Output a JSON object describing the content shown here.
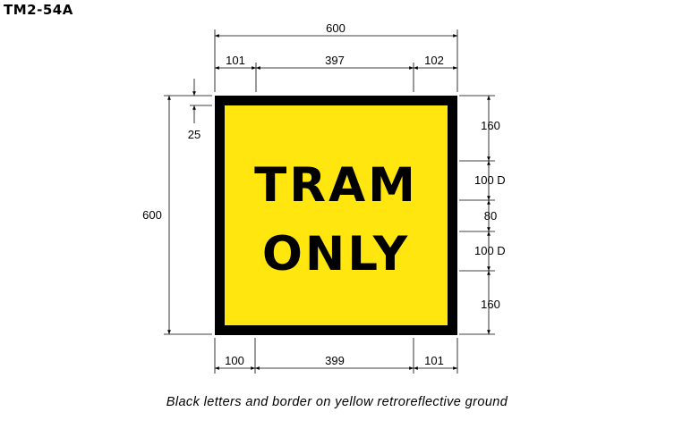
{
  "sign_code": "TM2-54A",
  "legend": {
    "line1": "TRAM",
    "line2": "ONLY"
  },
  "colors": {
    "legend_border": "#000000",
    "ground": "#ffe60f"
  },
  "caption": "Black letters and border on yellow retroreflective ground",
  "dimensions": {
    "overall_width": "600",
    "top_left_margin": "101",
    "top_text_width": "397",
    "top_right_margin": "102",
    "bottom_left_margin": "100",
    "bottom_text_width": "399",
    "bottom_right_margin": "101",
    "overall_height": "600",
    "border": "25",
    "right_top_margin": "160",
    "line1_height": "100 D",
    "line_gap": "80",
    "line2_height": "100 D",
    "right_bottom_margin": "160"
  }
}
